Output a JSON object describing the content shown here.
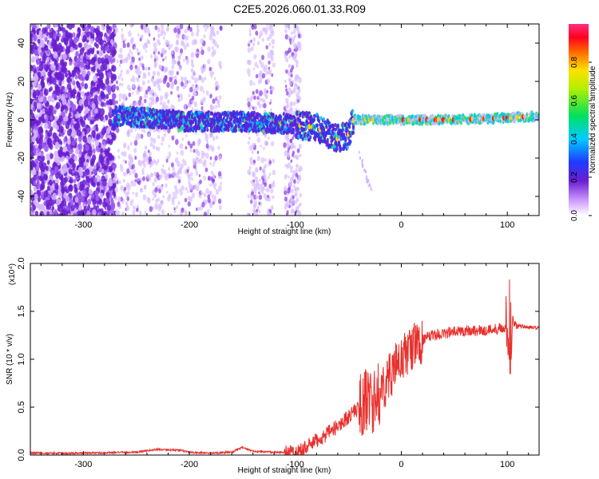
{
  "title": "C2E5.2026.060.01.33.R09",
  "colors": {
    "snr_line": "#e8302c",
    "dense_purple": "#6a1fd0",
    "background": "#ffffff"
  },
  "chart_data": [
    {
      "type": "heatmap",
      "xlabel": "Height of straight line (km)",
      "ylabel": "Frequency (Hz)",
      "xlim": [
        -350,
        130
      ],
      "ylim": [
        -50,
        50
      ],
      "xticks": [
        "-300",
        "-200",
        "-100",
        "0",
        "100"
      ],
      "xtick_values": [
        -300,
        -200,
        -100,
        0,
        100
      ],
      "yticks": [
        "-40",
        "-20",
        "0",
        "20",
        "40"
      ],
      "ytick_values": [
        -40,
        -20,
        0,
        20,
        40
      ],
      "colorbar": {
        "label": "Normalized spectral amplitude",
        "range": [
          0,
          1
        ],
        "ticks": [
          "0.0",
          "0.2",
          "0.4",
          "0.6",
          "0.8"
        ],
        "tick_values": [
          0,
          0.2,
          0.4,
          0.6,
          0.8
        ],
        "colormap": "rainbow (white-purple-blue-cyan-green-yellow-red-magenta)"
      },
      "features": {
        "noise_region_x": [
          -350,
          -270
        ],
        "sparse_noise_bands_x": [
          [
            -270,
            -170
          ],
          [
            -145,
            -120
          ],
          [
            -110,
            -95
          ]
        ],
        "carrier_track": [
          {
            "x": -270,
            "f": 2
          },
          {
            "x": -240,
            "f": 1
          },
          {
            "x": -200,
            "f": -1
          },
          {
            "x": -150,
            "f": -1
          },
          {
            "x": -110,
            "f": -2
          },
          {
            "x": -80,
            "f": -4
          },
          {
            "x": -60,
            "f": -10
          },
          {
            "x": -50,
            "f": -8
          },
          {
            "x": -45,
            "f": 0
          },
          {
            "x": 0,
            "f": 0
          },
          {
            "x": 50,
            "f": 0
          },
          {
            "x": 100,
            "f": 1
          },
          {
            "x": 130,
            "f": 2
          }
        ]
      }
    },
    {
      "type": "line",
      "xlabel": "Height of straight line (km)",
      "ylabel": "SNR (10 * v/v)",
      "y_multiplier": "(x10⁴)",
      "xlim": [
        -350,
        130
      ],
      "ylim": [
        0,
        2.0
      ],
      "xticks": [
        "-300",
        "-200",
        "-100",
        "0",
        "100"
      ],
      "xtick_values": [
        -300,
        -200,
        -100,
        0,
        100
      ],
      "yticks": [
        "0.0",
        "0.5",
        "1.0",
        "1.5",
        "2.0"
      ],
      "ytick_values": [
        0,
        0.5,
        1.0,
        1.5,
        2.0
      ],
      "series": [
        {
          "x": [
            -350,
            -300,
            -250,
            -230,
            -210,
            -200,
            -180,
            -160,
            -150,
            -140,
            -120,
            -100,
            -90,
            -80,
            -70,
            -60,
            -50,
            -40,
            -30,
            -25,
            -20,
            -10,
            0,
            10,
            20,
            30,
            40,
            60,
            80,
            95,
            100,
            103,
            105,
            110,
            130
          ],
          "y": [
            0.02,
            0.02,
            0.03,
            0.06,
            0.05,
            0.03,
            0.02,
            0.03,
            0.08,
            0.04,
            0.03,
            0.03,
            0.08,
            0.15,
            0.22,
            0.3,
            0.4,
            0.5,
            0.6,
            0.55,
            0.65,
            0.85,
            1.0,
            1.12,
            1.2,
            1.25,
            1.27,
            1.3,
            1.3,
            1.33,
            1.35,
            0.8,
            1.4,
            1.35,
            1.32
          ]
        }
      ]
    }
  ]
}
